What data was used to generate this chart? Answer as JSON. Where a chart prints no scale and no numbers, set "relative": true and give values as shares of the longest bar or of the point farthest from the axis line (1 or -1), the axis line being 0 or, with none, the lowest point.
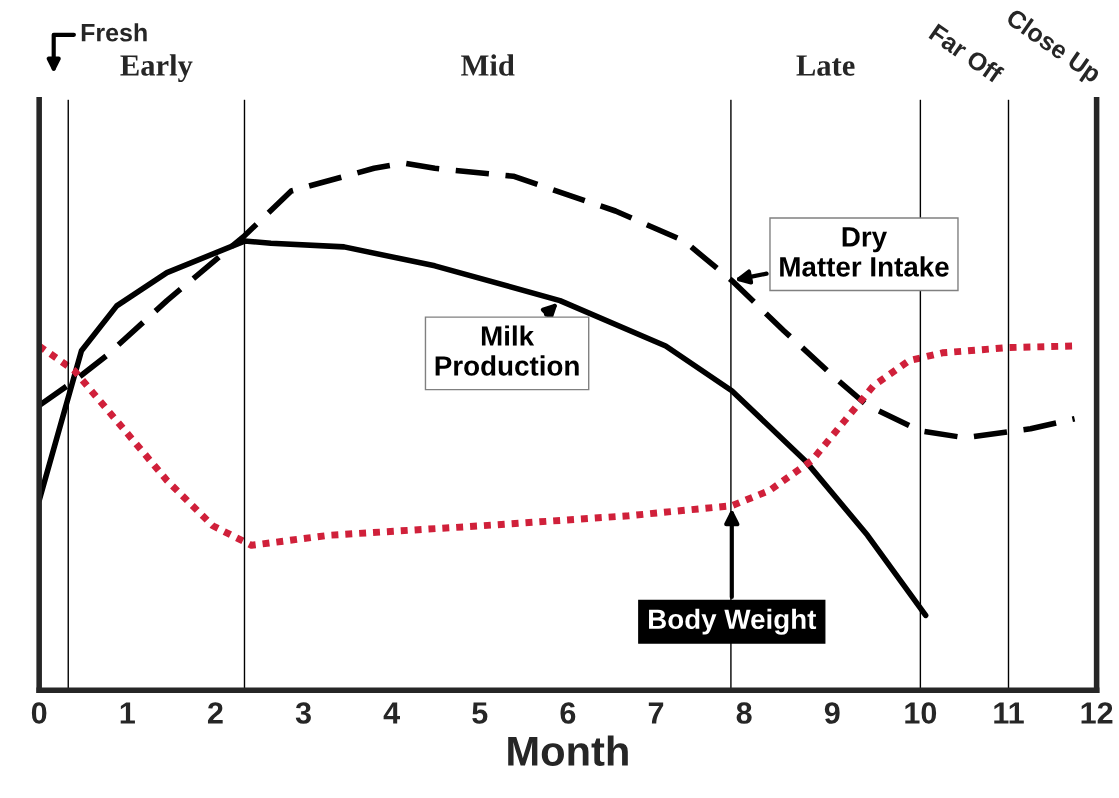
{
  "chart_data": {
    "type": "line",
    "xlabel": "Month",
    "relative": true,
    "tick_labels": "x",
    "xlim": [
      0,
      12
    ],
    "xticks": [
      0,
      1,
      2,
      3,
      4,
      5,
      6,
      7,
      8,
      9,
      10,
      11,
      12
    ],
    "ref_lines": [
      {
        "axis": "x",
        "value": 0.33
      },
      {
        "axis": "x",
        "value": 2.33
      },
      {
        "axis": "x",
        "value": 7.85
      },
      {
        "axis": "x",
        "value": 10
      },
      {
        "axis": "x",
        "value": 11
      }
    ],
    "annotations": [
      "Fresh",
      "Early",
      "Mid",
      "Late",
      "Far Off",
      "Close Up"
    ],
    "series": [
      {
        "name": "Dry Matter Intake",
        "color": "#000000",
        "line_style": "dashed",
        "x": [
          0,
          0.4,
          0.76,
          1.45,
          2.33,
          2.86,
          3.8,
          4.14,
          4.49,
          5.38,
          6.54,
          7.32,
          7.86,
          8.45,
          9.07,
          9.4,
          10.0,
          10.5,
          11.25,
          11.75
        ],
        "values": [
          0.54,
          0.587,
          0.634,
          0.739,
          0.862,
          0.947,
          0.99,
          1.0,
          0.99,
          0.975,
          0.909,
          0.852,
          0.777,
          0.682,
          0.587,
          0.54,
          0.492,
          0.479,
          0.496,
          0.515
        ]
      },
      {
        "name": "Milk Production",
        "color": "#000000",
        "line_style": "solid",
        "x": [
          0,
          0.48,
          0.88,
          1.45,
          2.33,
          2.63,
          3.46,
          4.49,
          5.91,
          7.11,
          7.86,
          8.69,
          9.4,
          10.06
        ],
        "values": [
          0.36,
          0.644,
          0.729,
          0.792,
          0.852,
          0.848,
          0.841,
          0.805,
          0.739,
          0.653,
          0.568,
          0.436,
          0.294,
          0.142
        ]
      },
      {
        "name": "Body Weight",
        "color": "#d0203a",
        "line_style": "dotted",
        "x": [
          0,
          0.4,
          0.88,
          1.45,
          1.97,
          2.41,
          3.29,
          5.02,
          6.69,
          7.86,
          8.29,
          8.77,
          9.14,
          9.47,
          9.87,
          10.25,
          11.0,
          11.75
        ],
        "values": [
          0.653,
          0.606,
          0.511,
          0.398,
          0.312,
          0.275,
          0.294,
          0.312,
          0.331,
          0.35,
          0.379,
          0.436,
          0.511,
          0.578,
          0.625,
          0.64,
          0.65,
          0.653
        ]
      }
    ]
  }
}
